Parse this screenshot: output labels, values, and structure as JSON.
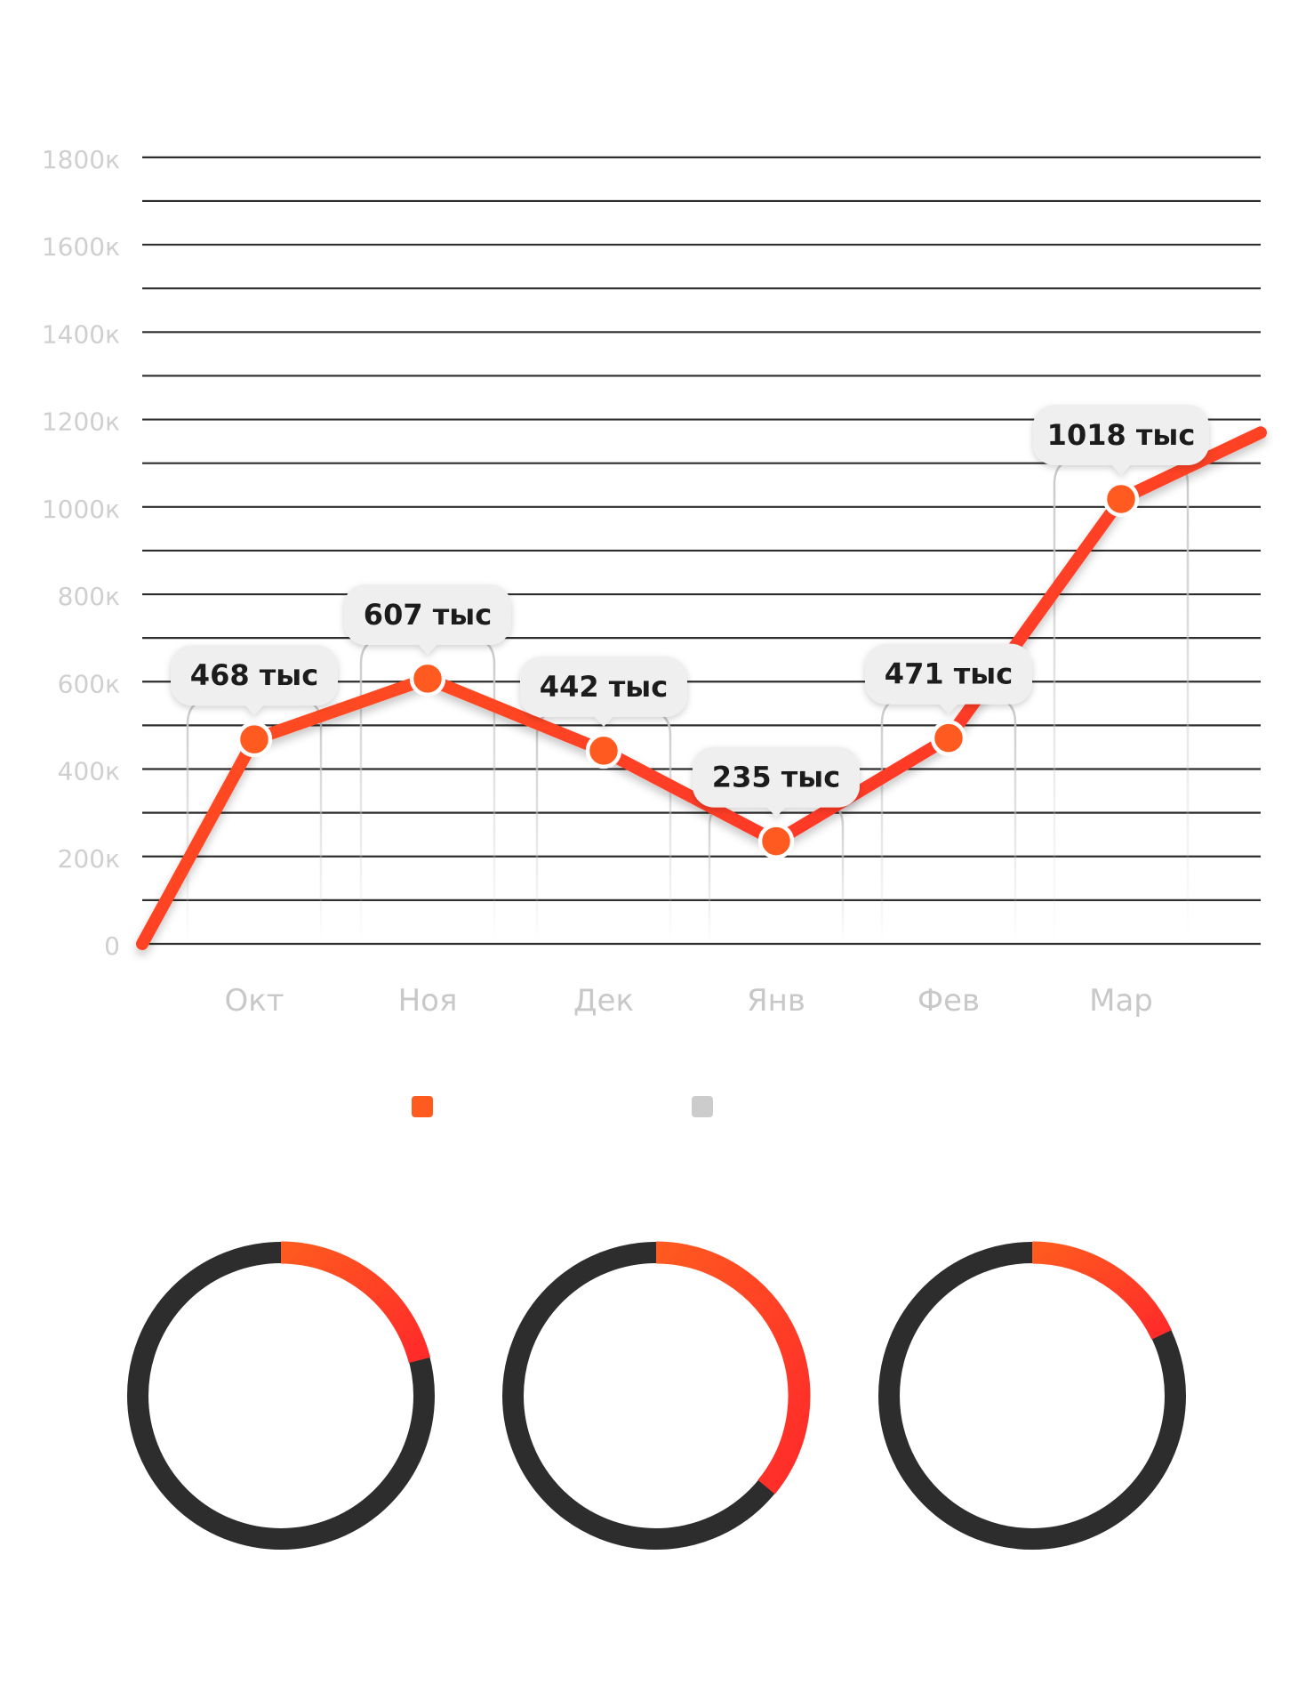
{
  "chart_data": [
    {
      "type": "line",
      "title": "",
      "xlabel": "",
      "ylabel": "",
      "ylim": [
        0,
        1800
      ],
      "y_unit_suffix": "к",
      "yticks": [
        "0",
        "200к",
        "400к",
        "600к",
        "800к",
        "1000к",
        "1200к",
        "1400к",
        "1600к",
        "1800к"
      ],
      "grid": true,
      "categories": [
        "Окт",
        "Ноя",
        "Дек",
        "Янв",
        "Фев",
        "Мар"
      ],
      "series": [
        {
          "values": [
            468,
            607,
            442,
            235,
            471,
            1018
          ],
          "start_value": 0,
          "end_value": 1170,
          "data_labels": [
            "468 тыс",
            "607 тыс",
            "442 тыс",
            "235 тыс",
            "471 тыс",
            "1018 тыс"
          ],
          "color": "#ff3d1f"
        }
      ],
      "legend": {
        "placement": "bottom-center",
        "colors": [
          "#ff5a1f",
          "#cccccc"
        ]
      }
    },
    {
      "type": "pie",
      "subtype": "donut",
      "donuts": [
        {
          "fraction": 0.21
        },
        {
          "fraction": 0.36
        },
        {
          "fraction": 0.18
        }
      ],
      "colors": {
        "ring": "#2d2d2d",
        "accent_start": "#ff5a1f",
        "accent_end": "#ff2a2a"
      }
    }
  ]
}
